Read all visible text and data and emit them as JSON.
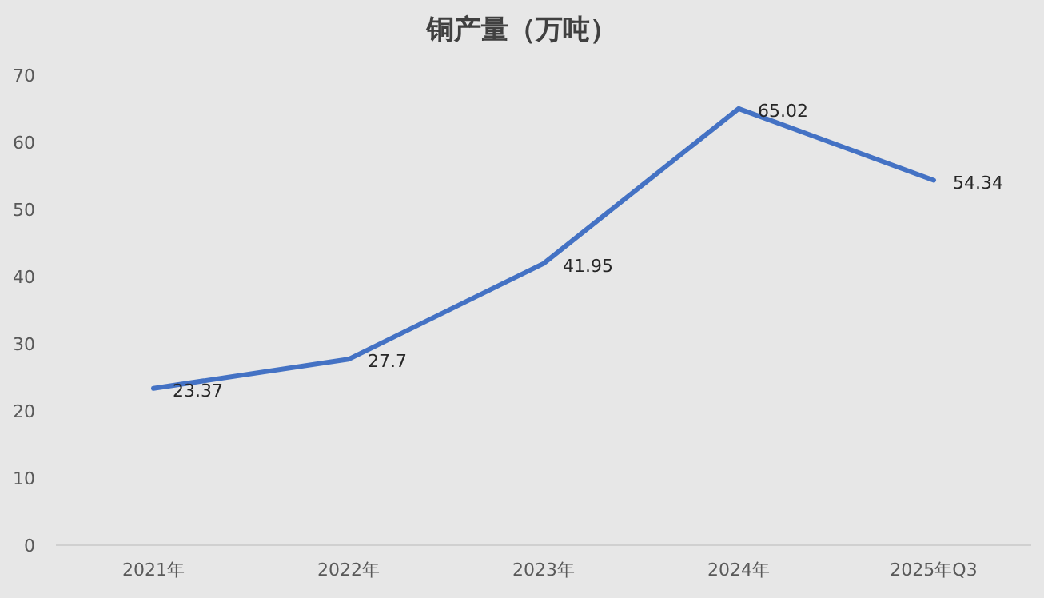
{
  "chart_data": {
    "type": "line",
    "title": "铜产量（万吨）",
    "categories": [
      "2021年",
      "2022年",
      "2023年",
      "2024年",
      "2025年Q3"
    ],
    "values": [
      23.37,
      27.7,
      41.95,
      65.02,
      54.34
    ],
    "color": "#4472c4",
    "ylim": [
      0,
      70
    ],
    "yticks": [
      0,
      10,
      20,
      30,
      40,
      50,
      60,
      70
    ],
    "data_labels": true
  }
}
